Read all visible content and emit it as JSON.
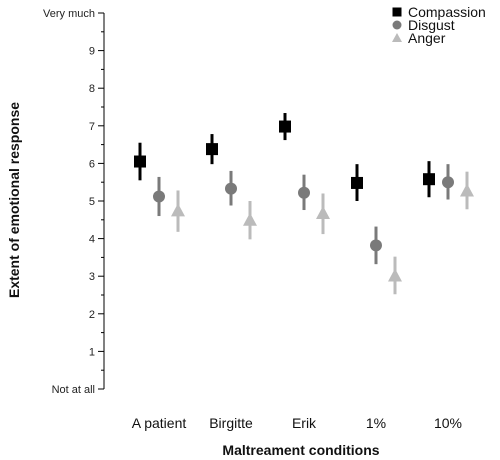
{
  "chart_data": {
    "type": "scatter",
    "title": "",
    "xlabel": "Maltreament conditions",
    "ylabel": "Extent of emotional response",
    "categories": [
      "A patient",
      "Birgitte",
      "Erik",
      "1%",
      "10%"
    ],
    "ylim": [
      0,
      10
    ],
    "yticks": [
      {
        "value": 0,
        "label": "Not at all"
      },
      {
        "value": 1,
        "label": "1"
      },
      {
        "value": 2,
        "label": "2"
      },
      {
        "value": 3,
        "label": "3"
      },
      {
        "value": 4,
        "label": "4"
      },
      {
        "value": 5,
        "label": "5"
      },
      {
        "value": 6,
        "label": "6"
      },
      {
        "value": 7,
        "label": "7"
      },
      {
        "value": 8,
        "label": "8"
      },
      {
        "value": 9,
        "label": "9"
      },
      {
        "value": 10,
        "label": "Very much"
      }
    ],
    "legend_position": "top-right",
    "grid": false,
    "series": [
      {
        "name": "Compassion",
        "marker": "square",
        "color": "#000000",
        "values": [
          6.05,
          6.38,
          6.98,
          5.48,
          5.58
        ],
        "low": [
          5.55,
          5.98,
          6.62,
          5.0,
          5.1
        ],
        "high": [
          6.55,
          6.78,
          7.34,
          5.98,
          6.06
        ]
      },
      {
        "name": "Disgust",
        "marker": "circle",
        "color": "#7a7a7a",
        "values": [
          5.12,
          5.33,
          5.22,
          3.82,
          5.5
        ],
        "low": [
          4.6,
          4.88,
          4.76,
          3.32,
          5.04
        ],
        "high": [
          5.64,
          5.8,
          5.7,
          4.32,
          5.98
        ]
      },
      {
        "name": "Anger",
        "marker": "triangle",
        "color": "#bbbbbb",
        "values": [
          4.75,
          4.5,
          4.68,
          3.02,
          5.28
        ],
        "low": [
          4.18,
          3.98,
          4.12,
          2.52,
          4.78
        ],
        "high": [
          5.28,
          5.0,
          5.2,
          3.52,
          5.78
        ]
      }
    ]
  }
}
